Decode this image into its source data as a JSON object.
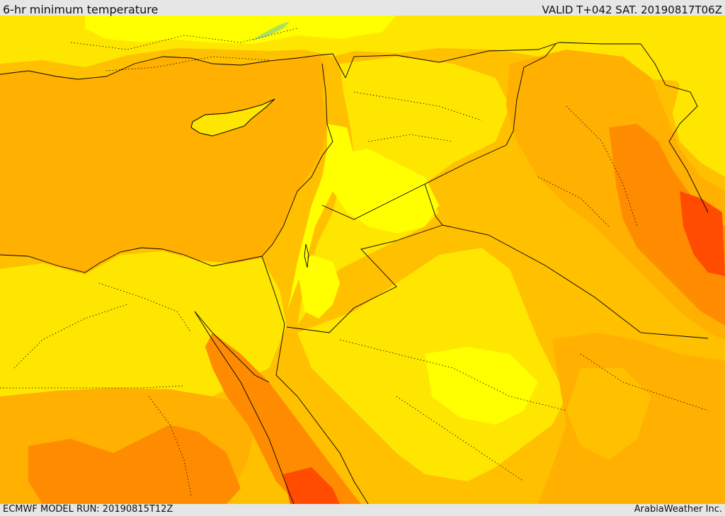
{
  "header": {
    "title": "6-hr minimum temperature",
    "valid_time": "VALID T+042 SAT. 20190817T06Z"
  },
  "footer": {
    "model_run": "ECMWF MODEL RUN: 20190815T12Z",
    "credit": "ArabiaWeather Inc."
  },
  "map": {
    "colors": {
      "sea": "#ffb000",
      "yellow_light": "#ffff00",
      "yellow": "#ffe600",
      "gold": "#ffd700",
      "amber": "#ffc000",
      "orange_light": "#ffa500",
      "orange": "#ff8c00",
      "orange_dark": "#ff6a00",
      "red_orange": "#ff4c00",
      "green_patch": "#a8e060",
      "border_line": "#000000"
    }
  }
}
